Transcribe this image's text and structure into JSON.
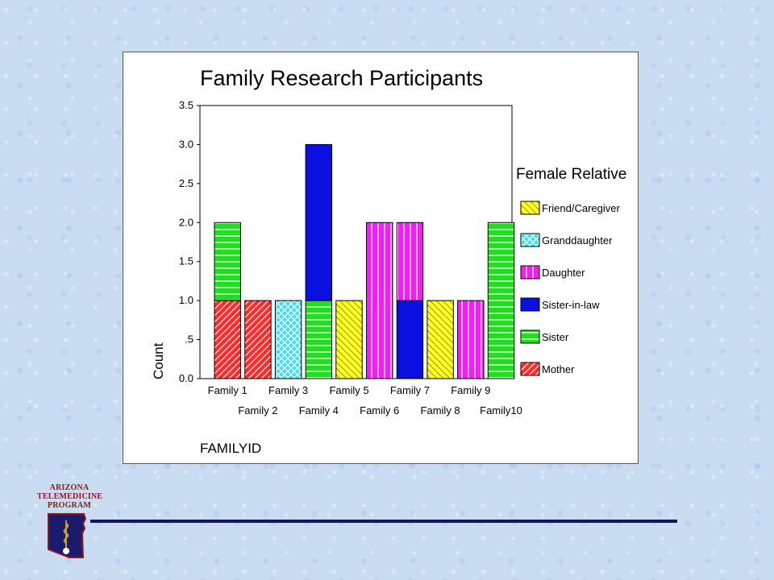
{
  "logo": {
    "line1": "ARIZONA",
    "line2": "TELEMEDICINE",
    "line3": "PROGRAM"
  },
  "colors": {
    "background": "#c9dcf2",
    "rule": "#14145e",
    "logo_red": "#8b1a1a"
  },
  "chart_data": {
    "type": "bar",
    "stacked": true,
    "title": "Family Research Participants",
    "xlabel": "FAMILYID",
    "ylabel": "Count",
    "ylim": [
      0,
      3.5
    ],
    "yticks": [
      {
        "value": 0,
        "label": "0.0"
      },
      {
        "value": 0.5,
        "label": ".5"
      },
      {
        "value": 1.0,
        "label": "1.0"
      },
      {
        "value": 1.5,
        "label": "1.5"
      },
      {
        "value": 2.0,
        "label": "2.0"
      },
      {
        "value": 2.5,
        "label": "2.5"
      },
      {
        "value": 3.0,
        "label": "3.0"
      },
      {
        "value": 3.5,
        "label": "3.5"
      }
    ],
    "categories": [
      "Family 1",
      "Family 2",
      "Family 3",
      "Family 4",
      "Family 5",
      "Family 6",
      "Family 7",
      "Family 8",
      "Family 9",
      "Family10"
    ],
    "legend_title": "Female Relative",
    "legend_position": "right",
    "series": [
      {
        "name": "Mother",
        "color": "#ff2a2a",
        "pattern": "diag-ltr",
        "values": [
          1,
          1,
          0,
          0,
          0,
          0,
          0,
          0,
          0,
          0
        ]
      },
      {
        "name": "Sister",
        "color": "#22dd22",
        "pattern": "horizontal",
        "values": [
          1,
          0,
          0,
          1,
          0,
          0,
          0,
          0,
          0,
          2
        ]
      },
      {
        "name": "Sister-in-law",
        "color": "#0a10e0",
        "pattern": "solid",
        "values": [
          0,
          0,
          0,
          2,
          0,
          0,
          1,
          0,
          0,
          0
        ]
      },
      {
        "name": "Daughter",
        "color": "#ee22ee",
        "pattern": "vertical",
        "values": [
          0,
          0,
          0,
          0,
          0,
          2,
          1,
          0,
          1,
          0
        ]
      },
      {
        "name": "Granddaughter",
        "color": "#44ddee",
        "pattern": "cross",
        "values": [
          0,
          0,
          1,
          0,
          0,
          0,
          0,
          0,
          0,
          0
        ]
      },
      {
        "name": "Friend/Caregiver",
        "color": "#ffff22",
        "pattern": "diag-rtl",
        "values": [
          0,
          0,
          0,
          0,
          1,
          0,
          0,
          1,
          0,
          0
        ]
      }
    ],
    "legend_order": [
      "Friend/Caregiver",
      "Granddaughter",
      "Daughter",
      "Sister-in-law",
      "Sister",
      "Mother"
    ]
  }
}
